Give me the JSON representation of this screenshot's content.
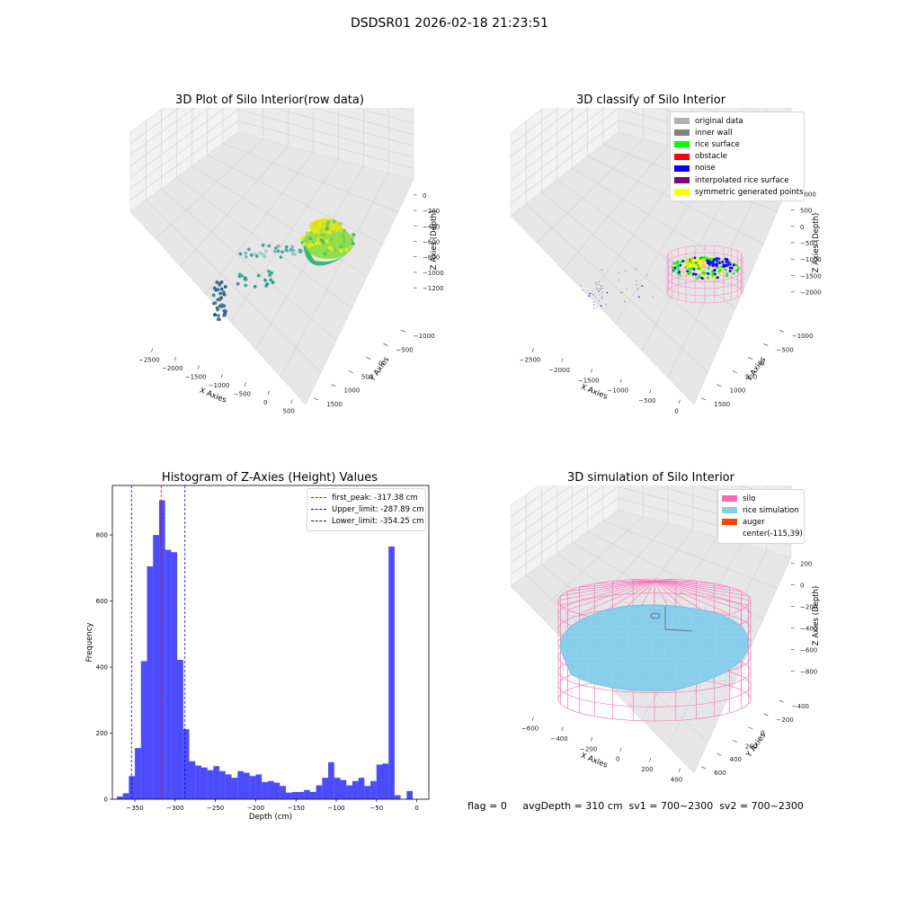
{
  "figure": {
    "suptitle": "DSDSR01 2026-02-18 21:23:51"
  },
  "panel_titles": {
    "raw": "3D Plot of Silo Interior(row data)",
    "classify": "3D classify of Silo Interior",
    "simulation": "3D simulation of Silo Interior"
  },
  "classify_legend": [
    {
      "label": "original data",
      "color": "#b3b3b3"
    },
    {
      "label": "inner wall",
      "color": "#808080"
    },
    {
      "label": "rice surface",
      "color": "#00ff00"
    },
    {
      "label": "obstacle",
      "color": "#ff0000"
    },
    {
      "label": "noise",
      "color": "#0000ff"
    },
    {
      "label": "interpolated rice surface",
      "color": "#800080"
    },
    {
      "label": "symmetric generated points",
      "color": "#ffff00"
    }
  ],
  "simulation_legend": [
    {
      "label": "silo",
      "color": "#ff69b4"
    },
    {
      "label": "rice simulation",
      "color": "#87ceeb"
    },
    {
      "label": "auger",
      "color": "#ff4500"
    },
    {
      "label": "center(-115,39)",
      "color": ""
    }
  ],
  "footer_text": "flag = 0     avgDepth = 310 cm  sv1 = 700~2300  sv2 = 700~2300",
  "chart_data": [
    {
      "type": "scatter",
      "projection": "3d",
      "title": "3D Plot of Silo Interior(row data)",
      "xlabel": "X Axies",
      "ylabel": "Y Axies",
      "zlabel": "Z Axies (Depth)",
      "x_ticks": [
        "−2500",
        "−2000",
        "−1500",
        "−1000",
        "−500",
        "0",
        "500"
      ],
      "y_ticks": [
        "−1000",
        "−500",
        "0",
        "500",
        "1000",
        "1500"
      ],
      "z_ticks": [
        "0",
        "−200",
        "−400",
        "−600",
        "−800",
        "−1000",
        "−1200"
      ]
    },
    {
      "type": "scatter",
      "projection": "3d",
      "title": "3D classify of Silo Interior",
      "xlabel": "X Axies",
      "ylabel": "Y Axies",
      "zlabel": "Z Axies (Depth)",
      "x_ticks": [
        "−2500",
        "−2000",
        "−1500",
        "−1000",
        "−500",
        "0"
      ],
      "y_ticks": [
        "−1000",
        "−500",
        "0",
        "500",
        "1000",
        "1500"
      ],
      "z_ticks": [
        "1000",
        "500",
        "0",
        "−500",
        "−1000",
        "−1500",
        "−2000"
      ],
      "legend_placement": "upper right"
    },
    {
      "type": "bar",
      "title": "Histogram of Z-Axies (Height) Values",
      "xlabel": "Depth (cm)",
      "ylabel": "Frequency",
      "bar_color": "#0000ff",
      "xlim": [
        -378,
        15
      ],
      "ylim": [
        0,
        950
      ],
      "x_ticks": [
        "−350",
        "−300",
        "−250",
        "−200",
        "−150",
        "−100",
        "−50",
        "0"
      ],
      "y_ticks": [
        "0",
        "200",
        "400",
        "600",
        "800"
      ],
      "bin_start": -372.5,
      "bin_width": 7.5,
      "values": [
        8,
        18,
        70,
        155,
        418,
        705,
        800,
        905,
        755,
        748,
        422,
        212,
        115,
        102,
        96,
        88,
        100,
        85,
        75,
        65,
        85,
        80,
        70,
        75,
        52,
        55,
        50,
        40,
        20,
        22,
        22,
        28,
        22,
        42,
        65,
        112,
        65,
        58,
        42,
        55,
        65,
        40,
        55,
        105,
        108,
        765,
        12,
        0,
        25
      ],
      "lines": [
        {
          "label": "first_peak: -317.38 cm",
          "x": -317.38,
          "color": "#ff0000"
        },
        {
          "label": "Upper_limit: -287.89 cm",
          "x": -287.89,
          "color": "#0000ff"
        },
        {
          "label": "Lower_limit: -354.25 cm",
          "x": -354.25,
          "color": "#0000ff"
        }
      ],
      "legend_placement": "upper right"
    },
    {
      "type": "surface",
      "projection": "3d",
      "title": "3D simulation of Silo Interior",
      "xlabel": "X Axies",
      "ylabel": "Y Axies",
      "zlabel": "Z Axies (Depth)",
      "x_ticks": [
        "−600",
        "−400",
        "−200",
        "0",
        "200",
        "400"
      ],
      "y_ticks": [
        "−400",
        "−200",
        "0",
        "200",
        "400",
        "600"
      ],
      "z_ticks": [
        "200",
        "0",
        "−200",
        "−400",
        "−600",
        "−800"
      ],
      "legend_placement": "upper right"
    }
  ]
}
